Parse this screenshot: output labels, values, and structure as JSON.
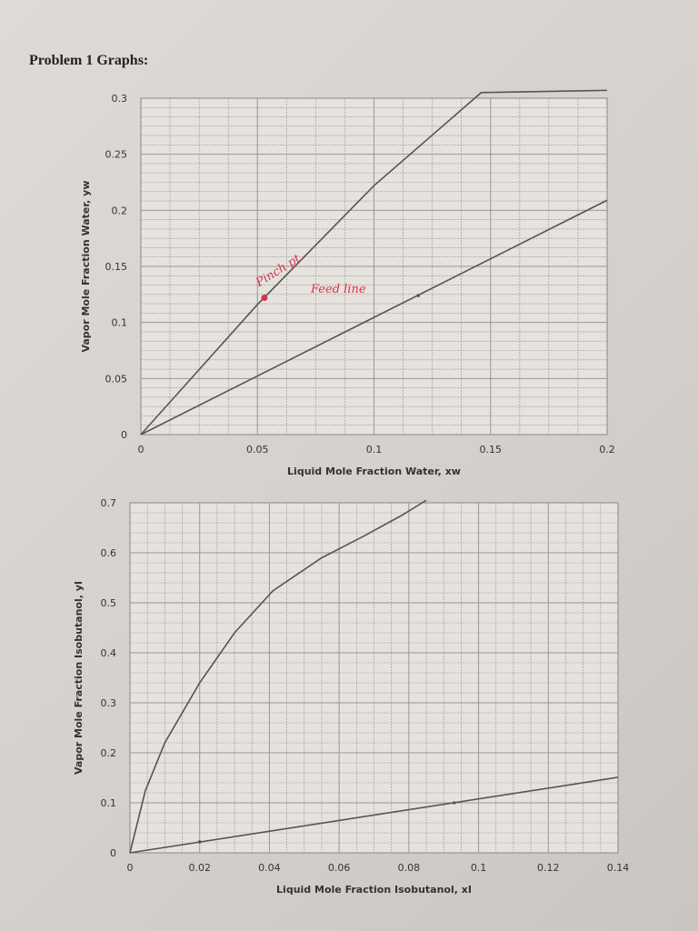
{
  "heading": "Problem 1 Graphs:",
  "chart_data": [
    {
      "type": "line",
      "xlabel": "Liquid Mole Fraction Water, xw",
      "ylabel": "Vapor Mole Fraction Water, yw",
      "xlim": [
        0,
        0.2
      ],
      "ylim": [
        0,
        0.3
      ],
      "xticks": [
        "0",
        "0.05",
        "0.1",
        "0.15",
        "0.2"
      ],
      "yticks": [
        "0",
        "0.05",
        "0.1",
        "0.15",
        "0.2",
        "0.25",
        "0.3"
      ],
      "grid": true,
      "series": [
        {
          "x": [
            0,
            0.05,
            0.1,
            0.146,
            0.2
          ],
          "y": [
            0,
            0.116,
            0.222,
            0.305,
            0.307
          ],
          "color": "#555555"
        },
        {
          "x": [
            0,
            0.2
          ],
          "y": [
            0,
            0.209
          ],
          "color": "#555555",
          "markers": [
            {
              "x": 0.119,
              "y": 0.124
            }
          ]
        }
      ],
      "annotations": [
        {
          "text": "Pinch pt.",
          "x": 0.053,
          "y": 0.122,
          "color": "#d8344a"
        },
        {
          "text": "Feed line",
          "color": "#d8344a"
        }
      ]
    },
    {
      "type": "line",
      "xlabel": "Liquid Mole Fraction Isobutanol, xI",
      "ylabel": "Vapor Mole Fraction Isobutanol, yI",
      "xlim": [
        0,
        0.14
      ],
      "ylim": [
        0,
        0.7
      ],
      "xticks": [
        "0",
        "0.02",
        "0.04",
        "0.06",
        "0.08",
        "0.1",
        "0.12",
        "0.14"
      ],
      "yticks": [
        "0",
        "0.1",
        "0.2",
        "0.3",
        "0.4",
        "0.5",
        "0.6",
        "0.7"
      ],
      "grid": true,
      "series": [
        {
          "x": [
            0,
            0.0044,
            0.01,
            0.02,
            0.03,
            0.041,
            0.055,
            0.067,
            0.078,
            0.085
          ],
          "y": [
            0,
            0.124,
            0.22,
            0.34,
            0.44,
            0.524,
            0.59,
            0.633,
            0.675,
            0.705
          ],
          "color": "#555555"
        },
        {
          "x": [
            0,
            0.14
          ],
          "y": [
            0,
            0.151
          ],
          "color": "#555555",
          "markers": [
            {
              "x": 0.02,
              "y": 0.022
            },
            {
              "x": 0.093,
              "y": 0.1
            }
          ]
        }
      ]
    }
  ]
}
